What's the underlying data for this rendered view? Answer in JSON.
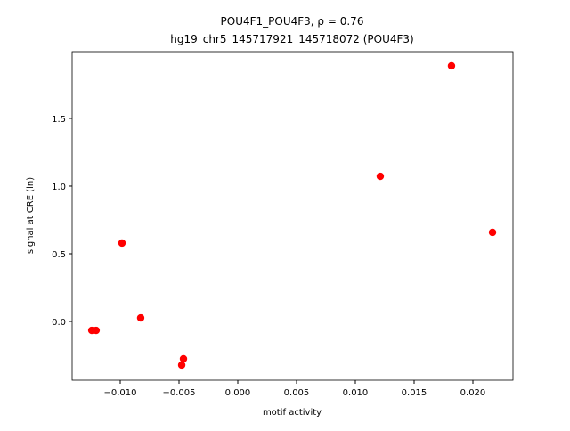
{
  "chart_data": {
    "type": "scatter",
    "title": "POU4F1_POU4F3, ρ = 0.76",
    "subtitle": "hg19_chr5_145717921_145718072 (POU4F3)",
    "x_label": "motif activity",
    "y_label": "signal at CRE (ln)",
    "color": "#ff0000",
    "x": [
      -0.01242,
      -0.01205,
      -0.00985,
      -0.00826,
      -0.00462,
      -0.00477,
      0.01212,
      0.01818,
      0.02167
    ],
    "values": [
      -0.066,
      -0.066,
      0.579,
      0.026,
      -0.276,
      -0.322,
      1.072,
      1.888,
      0.658
    ],
    "xlim": [
      -0.01409,
      0.02341
    ],
    "ylim": [
      -0.434,
      1.993
    ],
    "xticks": [
      {
        "value": -0.01,
        "label": "−0.010"
      },
      {
        "value": -0.005,
        "label": "−0.005"
      },
      {
        "value": 0,
        "label": "0.000"
      },
      {
        "value": 0.005,
        "label": "0.005"
      },
      {
        "value": 0.01,
        "label": "0.010"
      },
      {
        "value": 0.015,
        "label": "0.015"
      },
      {
        "value": 0.02,
        "label": "0.020"
      }
    ],
    "yticks": [
      {
        "value": 0,
        "label": "0.0"
      },
      {
        "value": 0.5,
        "label": "0.5"
      },
      {
        "value": 1,
        "label": "1.0"
      },
      {
        "value": 1.5,
        "label": "1.5"
      }
    ]
  }
}
